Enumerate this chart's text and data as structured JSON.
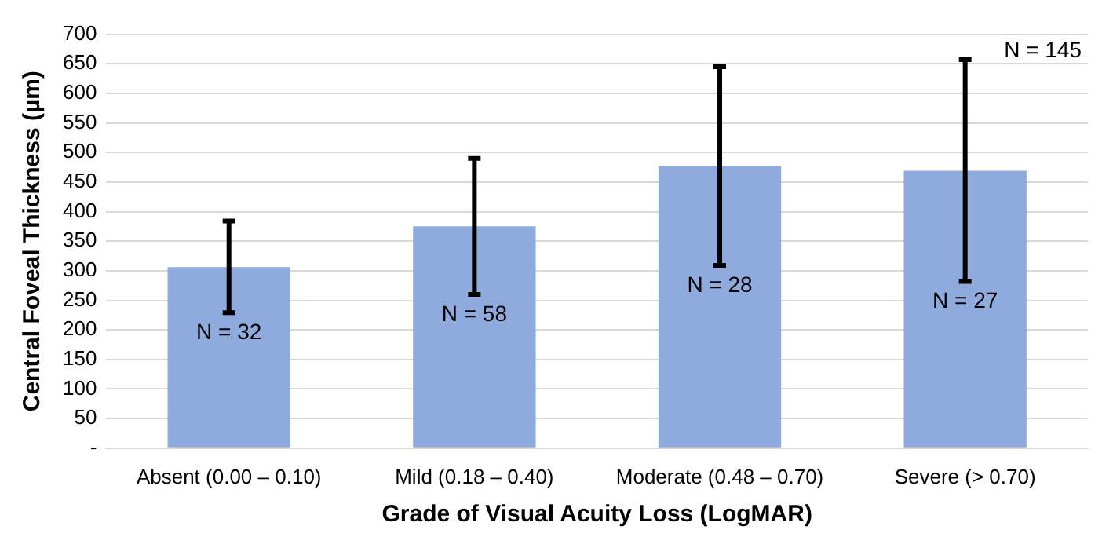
{
  "chart_data": {
    "type": "bar",
    "xlabel": "Grade of Visual Acuity Loss (LogMAR)",
    "ylabel": "Central Foveal Thickness (µm)",
    "categories": [
      "Absent (0.00 – 0.10)",
      "Mild (0.18 – 0.40)",
      "Moderate (0.48 – 0.70)",
      "Severe (> 0.70)"
    ],
    "values": [
      306,
      375,
      477,
      469
    ],
    "color": "#8faadc",
    "errors": [
      [
        229,
        384
      ],
      [
        260,
        490
      ],
      [
        309,
        645
      ],
      [
        282,
        657
      ]
    ],
    "ylim": [
      0,
      700
    ],
    "yticks": [
      {
        "value": 0,
        "label": "-"
      },
      50,
      100,
      150,
      200,
      250,
      300,
      350,
      400,
      450,
      500,
      550,
      600,
      650,
      700
    ],
    "grid": "y",
    "legend": false,
    "annotations": [
      "N = 32",
      "N = 58",
      "N = 28",
      "N = 27",
      "N = 145"
    ]
  }
}
